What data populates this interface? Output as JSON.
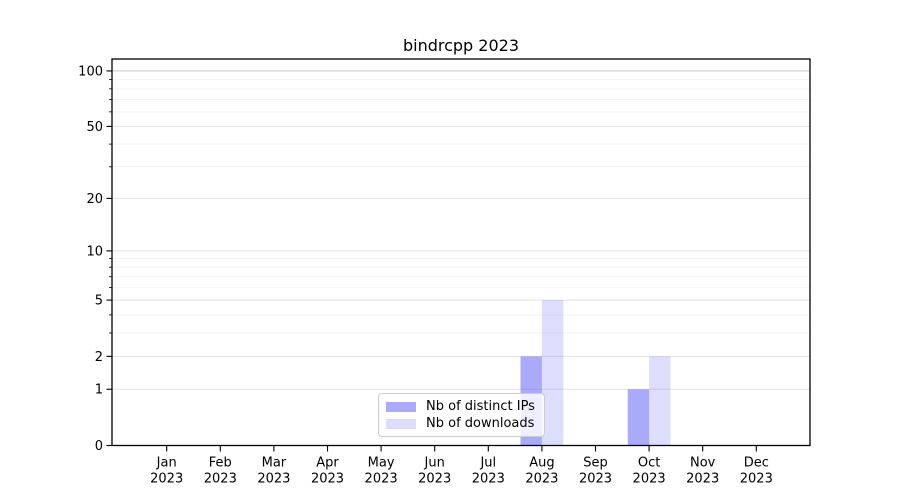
{
  "figure": {
    "background": "#ffffff"
  },
  "chart_data": {
    "type": "bar",
    "title": "bindrcpp 2023",
    "categories": [
      "Jan",
      "Feb",
      "Mar",
      "Apr",
      "May",
      "Jun",
      "Jul",
      "Aug",
      "Sep",
      "Oct",
      "Nov",
      "Dec"
    ],
    "year_label": "2023",
    "series": [
      {
        "name": "Nb of distinct IPs",
        "color": "rgba(85,85,245,0.5)",
        "values": [
          0,
          0,
          0,
          0,
          0,
          0,
          0,
          2,
          0,
          1,
          0,
          0
        ]
      },
      {
        "name": "Nb of downloads",
        "color": "rgba(85,85,245,0.2)",
        "values": [
          0,
          0,
          0,
          0,
          0,
          0,
          0,
          5,
          0,
          2,
          0,
          0
        ]
      }
    ],
    "yscale": "log1p",
    "ylim": [
      0,
      116
    ],
    "yticks_major": [
      0,
      1,
      2,
      5,
      10,
      20,
      50,
      100
    ],
    "yticks_minor": [
      3,
      4,
      6,
      7,
      8,
      9,
      30,
      40,
      60,
      70,
      80,
      90
    ],
    "grid": true,
    "legend_position": "lower center",
    "axis_color": "#000000",
    "grid_major_color": "#e3e3e3",
    "grid_top_color": "#c8c8c8",
    "grid_minor_color": "#f2f2f2"
  }
}
